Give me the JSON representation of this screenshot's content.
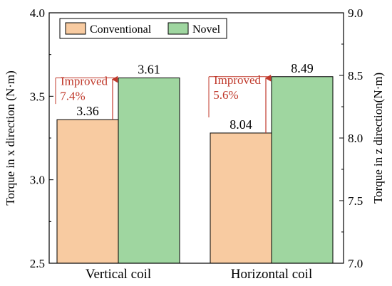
{
  "chart_data": {
    "type": "bar",
    "categories": [
      "Vertical coil",
      "Horizontal coil"
    ],
    "series": [
      {
        "name": "Conventional",
        "color": "#f8cba1"
      },
      {
        "name": "Novel",
        "color": "#9fd6a0"
      }
    ],
    "bars": [
      {
        "category": "Vertical coil",
        "series": "Conventional",
        "axis": "left",
        "value": 3.36,
        "label": "3.36"
      },
      {
        "category": "Vertical coil",
        "series": "Novel",
        "axis": "left",
        "value": 3.61,
        "label": "3.61"
      },
      {
        "category": "Horizontal coil",
        "series": "Conventional",
        "axis": "right",
        "value": 8.04,
        "label": "8.04"
      },
      {
        "category": "Horizontal coil",
        "series": "Novel",
        "axis": "right",
        "value": 8.49,
        "label": "8.49"
      }
    ],
    "y_left": {
      "label": "Torque in x direction (N·m)",
      "ylim": [
        2.5,
        4.0
      ],
      "ticks": [
        2.5,
        3.0,
        3.5,
        4.0
      ],
      "tick_labels": [
        "2.5",
        "3.0",
        "3.5",
        "4.0"
      ]
    },
    "y_right": {
      "label": "Torque in z direction(N·m)",
      "ylim": [
        7.0,
        9.0
      ],
      "ticks": [
        7.0,
        7.5,
        8.0,
        8.5,
        9.0
      ],
      "tick_labels": [
        "7.0",
        "7.5",
        "8.0",
        "8.5",
        "9.0"
      ]
    },
    "annotations": [
      {
        "category": "Vertical coil",
        "axis": "left",
        "from": 3.36,
        "to": 3.61,
        "line1": "Improved",
        "line2": "7.4%"
      },
      {
        "category": "Horizontal coil",
        "axis": "right",
        "from": 8.04,
        "to": 8.49,
        "line1": "Improved",
        "line2": "5.6%"
      }
    ],
    "annotation_color": "#c0392b",
    "legend_position": "top-left"
  }
}
